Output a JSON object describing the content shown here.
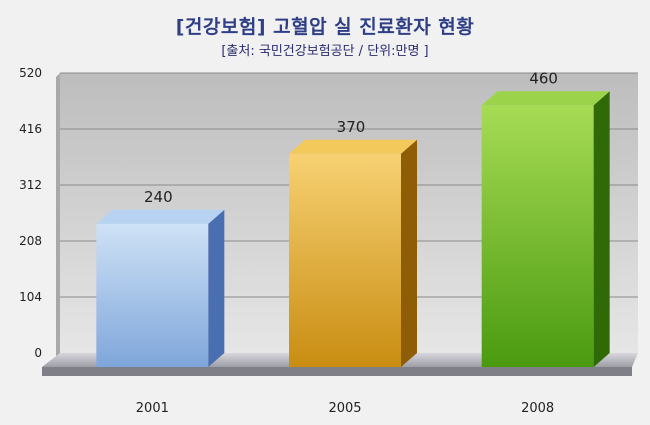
{
  "chart_data": {
    "type": "bar",
    "title": "[건강보험] 고혈압 실 진료환자 현황",
    "subtitle": "[출처: 국민건강보험공단 / 단위:만명 ]",
    "categories": [
      "2001",
      "2005",
      "2008"
    ],
    "values": [
      240,
      370,
      460
    ],
    "data_labels": [
      "240",
      "370",
      "460"
    ],
    "yticks": [
      "0",
      "104",
      "208",
      "312",
      "416",
      "520"
    ],
    "ylim": [
      0,
      520
    ],
    "grid": true,
    "bar_colors": [
      {
        "front_top": "#cfe2f6",
        "front_bottom": "#7fa6da",
        "side": "#4a6fb0",
        "top": "#b8d3f2"
      },
      {
        "front_top": "#f7d173",
        "front_bottom": "#c98d12",
        "side": "#8e5d05",
        "top": "#f2c95a"
      },
      {
        "front_top": "#a7dc55",
        "front_bottom": "#4a9a10",
        "side": "#2f6a06",
        "top": "#9bd44a"
      }
    ],
    "wall_color": "#c9c9c9",
    "floor_color": "#b2b2b9"
  }
}
